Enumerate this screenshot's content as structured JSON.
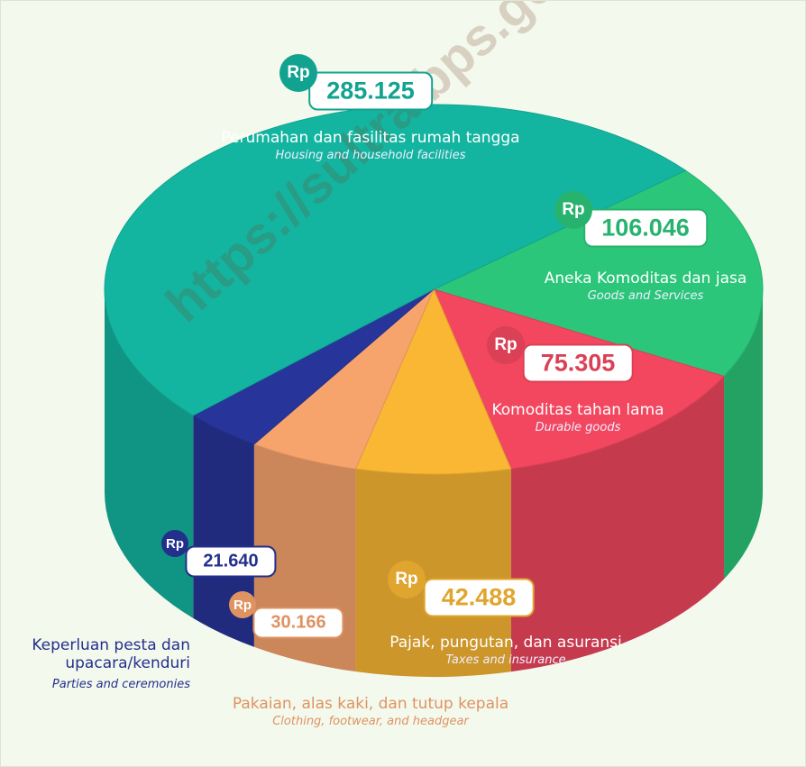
{
  "chart_data": {
    "type": "pie",
    "watermark": "https://sultra.bps.go.id",
    "currency": "Rp",
    "categories": [
      "Aneka Komoditas dan jasa",
      "Komoditas tahan lama",
      "Pajak, pungutan, dan asuransi",
      "Pakaian, alas kaki, dan tutup kepala",
      "Keperluan pesta dan upacara/kenduri",
      "Perumahan dan fasilitas rumah tangga"
    ],
    "translations": [
      "Goods and Services",
      "Durable goods",
      "Taxes and insurance",
      "Clothing, footwear, and headgear",
      "Parties and ceremonies",
      "Housing and household facilities"
    ],
    "values": [
      106046,
      75305,
      42488,
      30166,
      21640,
      285125
    ],
    "value_labels": [
      "106.046",
      "75.305",
      "42.488",
      "30.166",
      "21.640",
      "285.125"
    ],
    "colors": [
      "#2bc67a",
      "#f2475f",
      "#f9b733",
      "#f7a36c",
      "#27359a",
      "#14b5a0"
    ]
  }
}
